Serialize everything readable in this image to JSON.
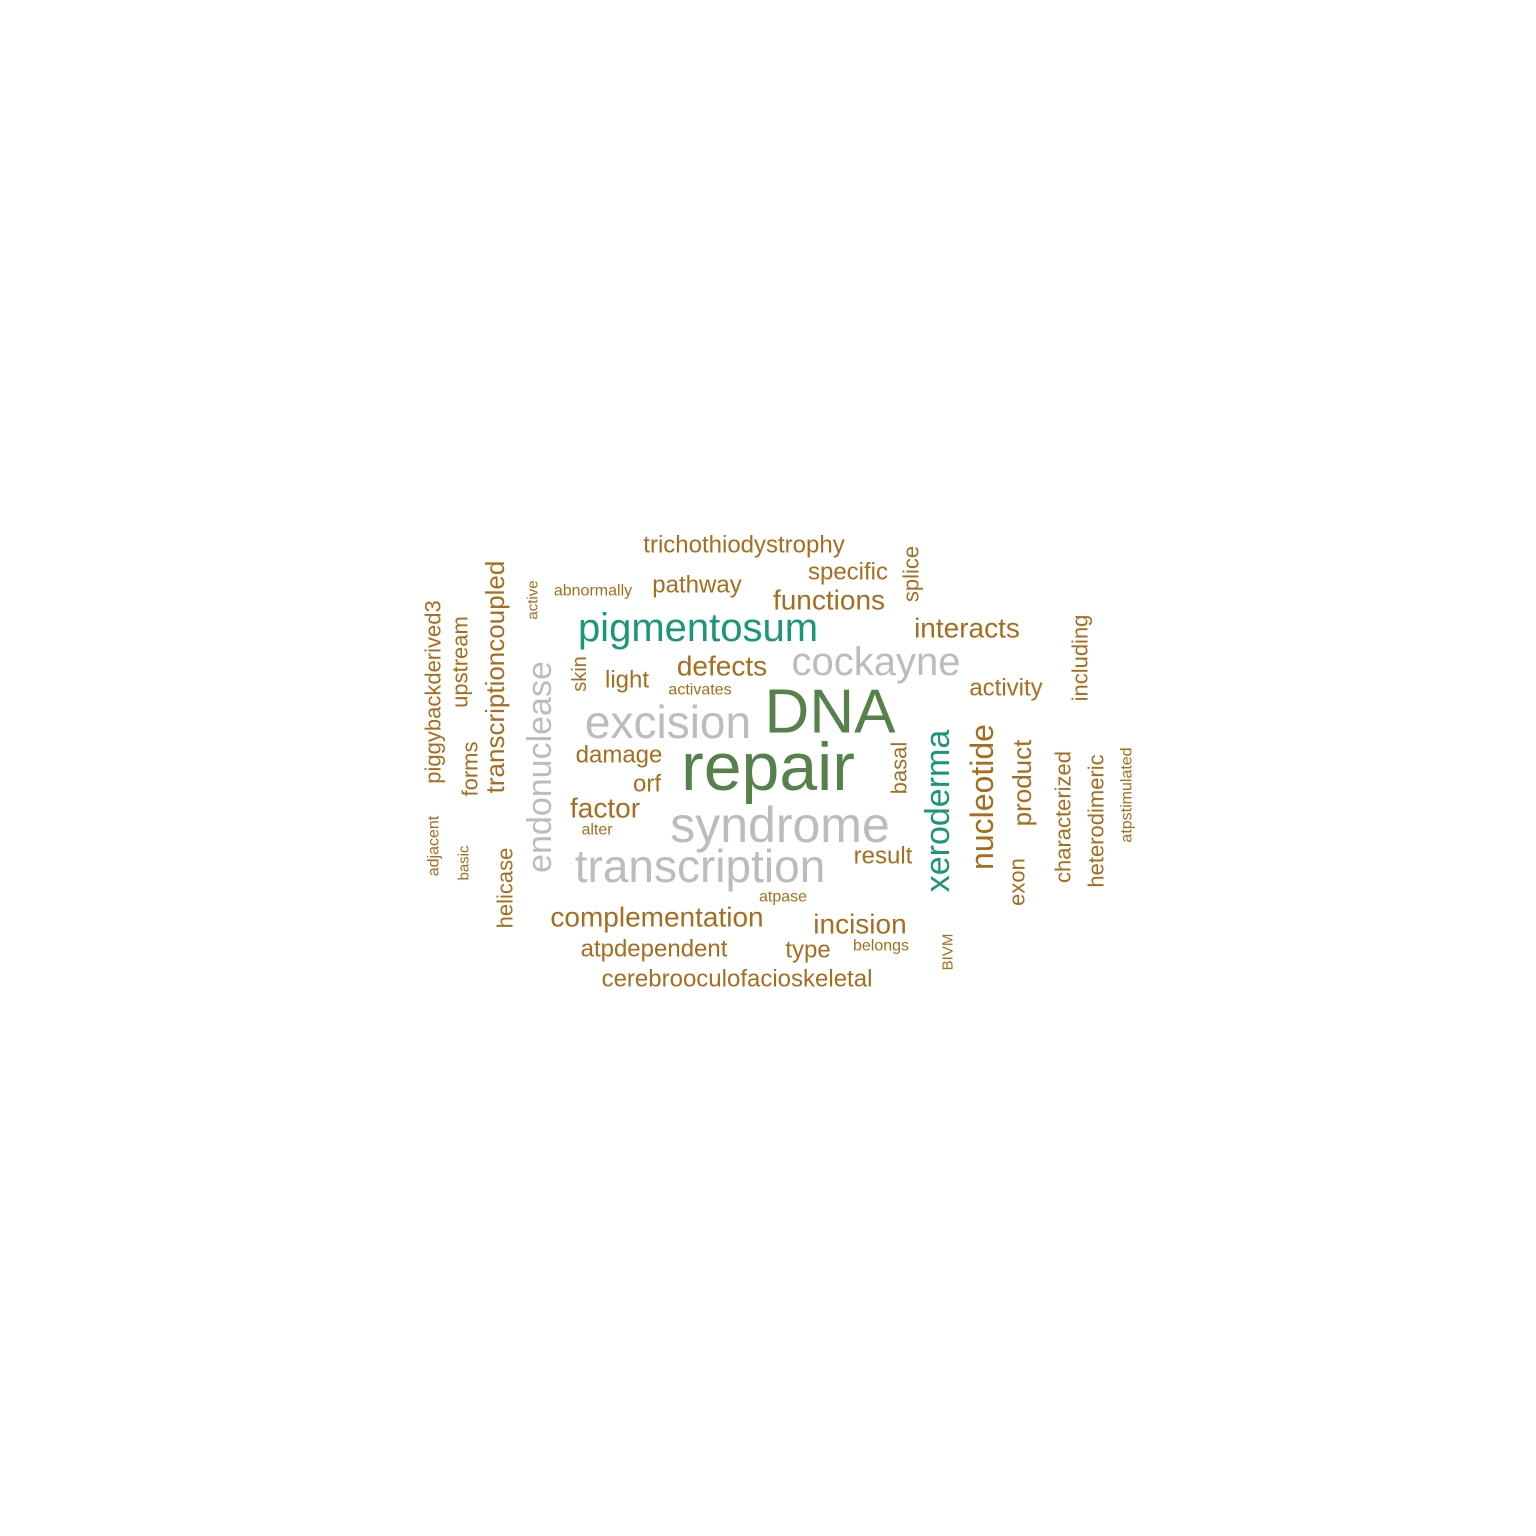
{
  "colors": {
    "background": "#ffffff",
    "brown": "#a66d1f",
    "gray": "#bcbcbc",
    "olive": "#56814a",
    "teal": "#1b9679"
  },
  "words": [
    {
      "text": "repair",
      "color": "olive"
    },
    {
      "text": "DNA",
      "color": "olive"
    },
    {
      "text": "syndrome",
      "color": "gray"
    },
    {
      "text": "excision",
      "color": "gray"
    },
    {
      "text": "transcription",
      "color": "gray"
    },
    {
      "text": "pigmentosum",
      "color": "teal"
    },
    {
      "text": "cockayne",
      "color": "gray"
    },
    {
      "text": "xeroderma",
      "color": "teal"
    },
    {
      "text": "endonuclease",
      "color": "gray"
    },
    {
      "text": "nucleotide",
      "color": "brown"
    },
    {
      "text": "transcriptioncoupled",
      "color": "brown"
    },
    {
      "text": "trichothiodystrophy",
      "color": "brown"
    },
    {
      "text": "specific",
      "color": "brown"
    },
    {
      "text": "splice",
      "color": "brown"
    },
    {
      "text": "abnormally",
      "color": "brown"
    },
    {
      "text": "pathway",
      "color": "brown"
    },
    {
      "text": "functions",
      "color": "brown"
    },
    {
      "text": "active",
      "color": "brown"
    },
    {
      "text": "interacts",
      "color": "brown"
    },
    {
      "text": "piggybackderived3",
      "color": "brown"
    },
    {
      "text": "upstream",
      "color": "brown"
    },
    {
      "text": "including",
      "color": "brown"
    },
    {
      "text": "skin",
      "color": "brown"
    },
    {
      "text": "defects",
      "color": "brown"
    },
    {
      "text": "light",
      "color": "brown"
    },
    {
      "text": "activates",
      "color": "brown"
    },
    {
      "text": "activity",
      "color": "brown"
    },
    {
      "text": "forms",
      "color": "brown"
    },
    {
      "text": "damage",
      "color": "brown"
    },
    {
      "text": "orf",
      "color": "brown"
    },
    {
      "text": "basal",
      "color": "brown"
    },
    {
      "text": "product",
      "color": "brown"
    },
    {
      "text": "characterized",
      "color": "brown"
    },
    {
      "text": "heterodimeric",
      "color": "brown"
    },
    {
      "text": "atpstimulated",
      "color": "brown"
    },
    {
      "text": "factor",
      "color": "brown"
    },
    {
      "text": "alter",
      "color": "brown"
    },
    {
      "text": "result",
      "color": "brown"
    },
    {
      "text": "adjacent",
      "color": "brown"
    },
    {
      "text": "basic",
      "color": "brown"
    },
    {
      "text": "helicase",
      "color": "brown"
    },
    {
      "text": "exon",
      "color": "brown"
    },
    {
      "text": "atpase",
      "color": "brown"
    },
    {
      "text": "complementation",
      "color": "brown"
    },
    {
      "text": "incision",
      "color": "brown"
    },
    {
      "text": "atpdependent",
      "color": "brown"
    },
    {
      "text": "type",
      "color": "brown"
    },
    {
      "text": "belongs",
      "color": "brown"
    },
    {
      "text": "BIVM",
      "color": "brown"
    },
    {
      "text": "cerebrooculofacioskeletal",
      "color": "brown"
    }
  ]
}
